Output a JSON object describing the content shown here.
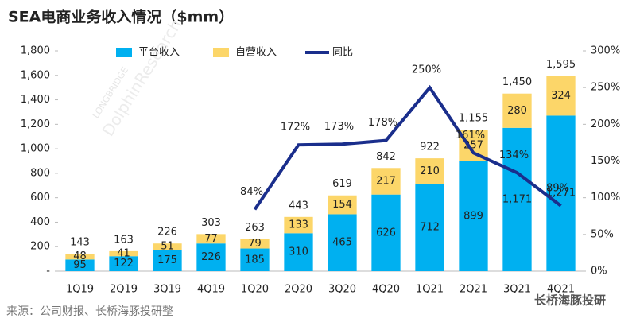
{
  "chart_data": {
    "type": "bar",
    "stacked": true,
    "title": "SEA电商业务收入情况（$mm）",
    "source": "来源：公司财报、长桥海豚投研整",
    "brand": "长桥海豚投研",
    "watermark": [
      "LONGBRIDGE",
      "DolphinResearch"
    ],
    "categories": [
      "1Q19",
      "2Q19",
      "3Q19",
      "4Q19",
      "1Q20",
      "2Q20",
      "3Q20",
      "4Q20",
      "1Q21",
      "2Q21",
      "3Q21",
      "4Q21"
    ],
    "series": [
      {
        "name": "平台收入",
        "color": "#00b0f0",
        "values": [
          95,
          122,
          175,
          226,
          185,
          310,
          465,
          626,
          712,
          899,
          1171,
          1271
        ],
        "value_labels": [
          "95",
          "122",
          "175",
          "226",
          "185",
          "310",
          "465",
          "626",
          "712",
          "899",
          "1,171",
          "1,271"
        ]
      },
      {
        "name": "自营收入",
        "color": "#fcd669",
        "values": [
          48,
          41,
          51,
          77,
          79,
          133,
          154,
          217,
          210,
          257,
          280,
          324
        ]
      },
      {
        "name": "同比",
        "color": "#1a2e8c",
        "type": "line",
        "axis": "y2",
        "values": [
          null,
          null,
          null,
          null,
          84,
          172,
          173,
          178,
          250,
          161,
          134,
          89
        ],
        "value_labels": [
          null,
          null,
          null,
          null,
          "84%",
          "172%",
          "173%",
          "178%",
          "250%",
          "161%",
          "134%",
          "89%"
        ]
      }
    ],
    "totals": {
      "values": [
        143,
        163,
        226,
        303,
        263,
        443,
        619,
        842,
        922,
        1155,
        1450,
        1595
      ],
      "value_labels": [
        "143",
        "163",
        "226",
        "303",
        "263",
        "443",
        "619",
        "842",
        "922",
        "1,155",
        "1,450",
        "1,595"
      ]
    },
    "ylim": [
      0,
      1800
    ],
    "yticks": [
      {
        "value": 0,
        "label": "-"
      },
      200,
      400,
      600,
      800,
      {
        "value": 1000,
        "label": "1,000"
      },
      {
        "value": 1200,
        "label": "1,200"
      },
      {
        "value": 1400,
        "label": "1,400"
      },
      {
        "value": 1600,
        "label": "1,600"
      },
      {
        "value": 1800,
        "label": "1,800"
      }
    ],
    "y2lim": [
      0,
      300
    ],
    "y2ticks": [
      {
        "value": 0,
        "label": "0%"
      },
      {
        "value": 50,
        "label": "50%"
      },
      {
        "value": 100,
        "label": "100%"
      },
      {
        "value": 150,
        "label": "150%"
      },
      {
        "value": 200,
        "label": "200%"
      },
      {
        "value": 250,
        "label": "250%"
      },
      {
        "value": 300,
        "label": "300%"
      }
    ],
    "legend": "top",
    "grid": false
  }
}
